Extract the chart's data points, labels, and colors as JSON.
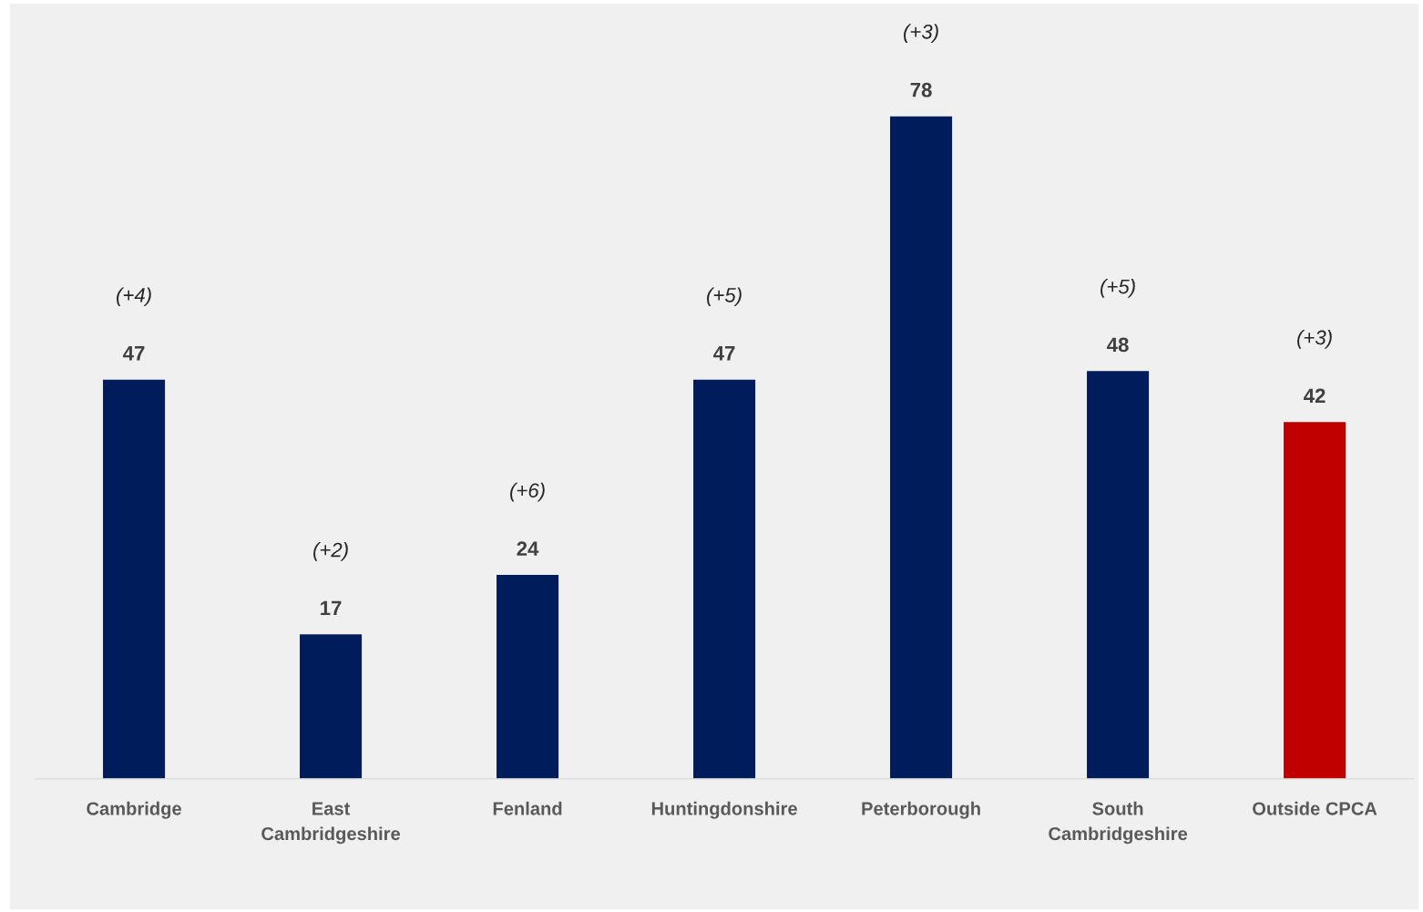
{
  "chart_data": {
    "type": "bar",
    "categories": [
      "Cambridge",
      "East\nCambridgeshire",
      "Fenland",
      "Huntingdonshire",
      "Peterborough",
      "South\nCambridgeshire",
      "Outside CPCA"
    ],
    "values": [
      47,
      17,
      24,
      47,
      78,
      48,
      42
    ],
    "colors": [
      "#001c5a",
      "#001c5a",
      "#001c5a",
      "#001c5a",
      "#001c5a",
      "#001c5a",
      "#c00000"
    ],
    "data_labels": true,
    "grid": false,
    "legend": false,
    "annotations": [
      "(+4)",
      "(+2)",
      "(+6)",
      "(+5)",
      "(+3)",
      "(+5)",
      "(+3)"
    ]
  }
}
